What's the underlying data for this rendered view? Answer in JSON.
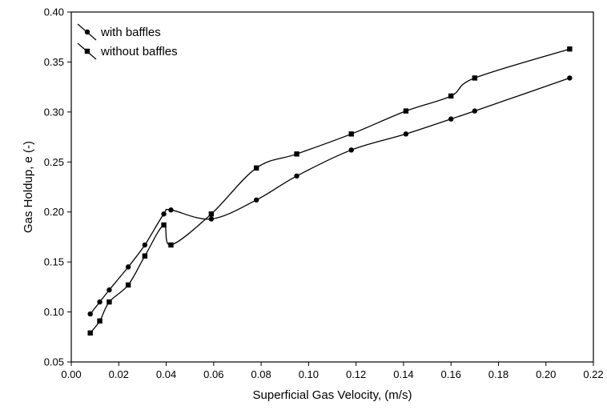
{
  "chart_data": {
    "type": "line",
    "title": "",
    "xlabel": "Superficial Gas Velocity,  (m/s)",
    "ylabel": "Gas Holdup, e (-)",
    "xlim": [
      0.0,
      0.22
    ],
    "ylim": [
      0.05,
      0.4
    ],
    "xticks": [
      "0.00",
      "0.02",
      "0.04",
      "0.06",
      "0.08",
      "0.10",
      "0.12",
      "0.14",
      "0.16",
      "0.18",
      "0.20",
      "0.22"
    ],
    "yticks": [
      "0.05",
      "0.10",
      "0.15",
      "0.20",
      "0.25",
      "0.30",
      "0.35",
      "0.40"
    ],
    "grid": false,
    "legend_position": "top-left",
    "series": [
      {
        "name": "with baffles",
        "marker": "circle",
        "x": [
          0.008,
          0.012,
          0.016,
          0.024,
          0.031,
          0.039,
          0.042,
          0.059,
          0.078,
          0.095,
          0.118,
          0.141,
          0.16,
          0.17,
          0.21
        ],
        "y": [
          0.098,
          0.11,
          0.122,
          0.145,
          0.167,
          0.198,
          0.202,
          0.193,
          0.212,
          0.236,
          0.262,
          0.278,
          0.293,
          0.301,
          0.334
        ]
      },
      {
        "name": "without baffles",
        "marker": "square",
        "x": [
          0.008,
          0.012,
          0.016,
          0.024,
          0.031,
          0.039,
          0.042,
          0.059,
          0.078,
          0.095,
          0.118,
          0.141,
          0.16,
          0.17,
          0.21
        ],
        "y": [
          0.079,
          0.091,
          0.11,
          0.127,
          0.156,
          0.187,
          0.167,
          0.198,
          0.244,
          0.258,
          0.278,
          0.301,
          0.316,
          0.334,
          0.363
        ]
      }
    ]
  }
}
